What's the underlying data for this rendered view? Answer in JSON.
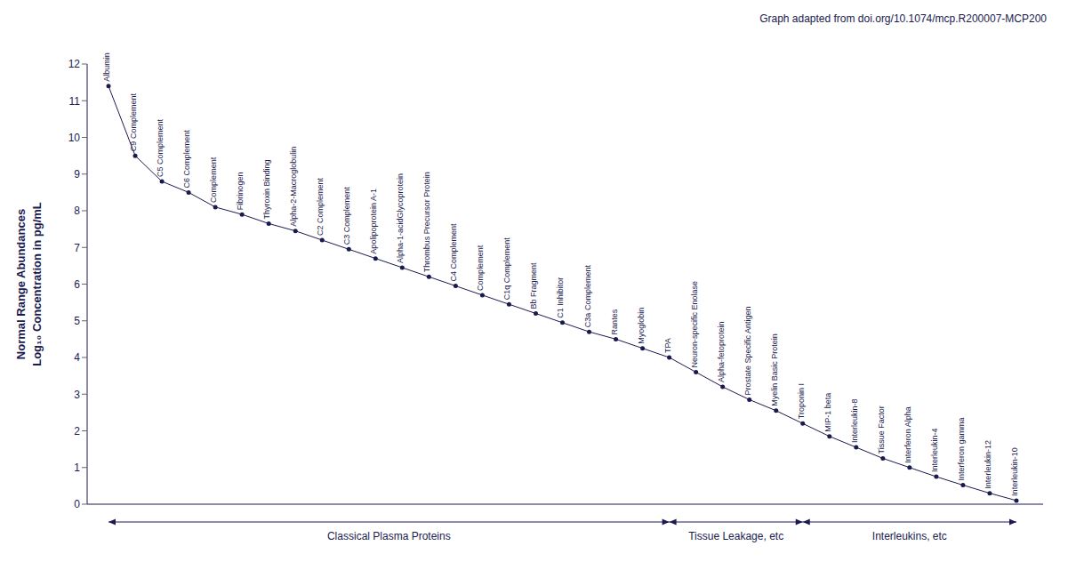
{
  "chart_data": {
    "type": "line",
    "title": "Graph adapted from doi.org/10.1074/mcp.R200007-MCP200",
    "y_label": "Normal Range Abundances\nLog₁₀ Concentration in pg/mL",
    "x": [
      1,
      2,
      3,
      4,
      5,
      6,
      7,
      8,
      9,
      10,
      11,
      12,
      13,
      14,
      15,
      16,
      17,
      18,
      19,
      20,
      21,
      22,
      23,
      24,
      25,
      26,
      27,
      28,
      29,
      30,
      31,
      32,
      33,
      34,
      35
    ],
    "values": [
      11.4,
      9.5,
      8.8,
      8.5,
      8.1,
      7.9,
      7.65,
      7.45,
      7.2,
      6.95,
      6.7,
      6.45,
      6.2,
      5.95,
      5.7,
      5.45,
      5.2,
      4.95,
      4.7,
      4.5,
      4.25,
      4.0,
      3.6,
      3.2,
      2.85,
      2.55,
      2.2,
      1.85,
      1.55,
      1.25,
      1.0,
      0.75,
      0.52,
      0.3,
      0.1
    ],
    "point_labels": [
      "Albumin",
      "C9 Complement",
      "C5 Complement",
      "C6 Complement",
      "Complement",
      "Fibrinogen",
      "Thyroxin Binding",
      "Alpha-2-Macroglobulin",
      "C2 Complement",
      "C3 Complement",
      "Apolipoprotein A-1",
      "Alpha-1-acidGlycoprotein",
      "Thrombus Precursor Protein",
      "C4 Complement",
      "Complement",
      "C1q Complement",
      "Bb Fragment",
      "C1 Inhibitor",
      "C3a Complement",
      "Rantes",
      "Myoglobin",
      "TPA",
      "Neuron-specific Enolase",
      "Alpha-fetoprotein",
      "Prostate Specific Antigen",
      "Myelin Basic Protein",
      "Troponin I",
      "MIP-1 beta",
      "Interleukin-8",
      "Tissue Factor",
      "Interferon Alpha",
      "Interleukin-4",
      "Interferon gamma",
      "Interleukin-12",
      "Interleukin-10"
    ],
    "annotations": [
      {
        "label": "Classical Plasma Proteins",
        "x_start": 1,
        "x_end": 22,
        "label_x": 11.5
      },
      {
        "label": "Tissue Leakage, etc",
        "x_start": 22,
        "x_end": 27,
        "label_x": 24.5
      },
      {
        "label": "Interleukins, etc",
        "x_start": 27,
        "x_end": 35,
        "label_x": 31.0
      }
    ],
    "xlim": [
      0.2,
      36
    ],
    "xticks": [],
    "ylim": [
      0,
      12
    ],
    "yticks": [
      0,
      1,
      2,
      3,
      4,
      5,
      6,
      7,
      8,
      9,
      10,
      11,
      12
    ],
    "tick_labels": "y",
    "grid": false,
    "color": "#1a1a4e",
    "marker": "circle"
  }
}
